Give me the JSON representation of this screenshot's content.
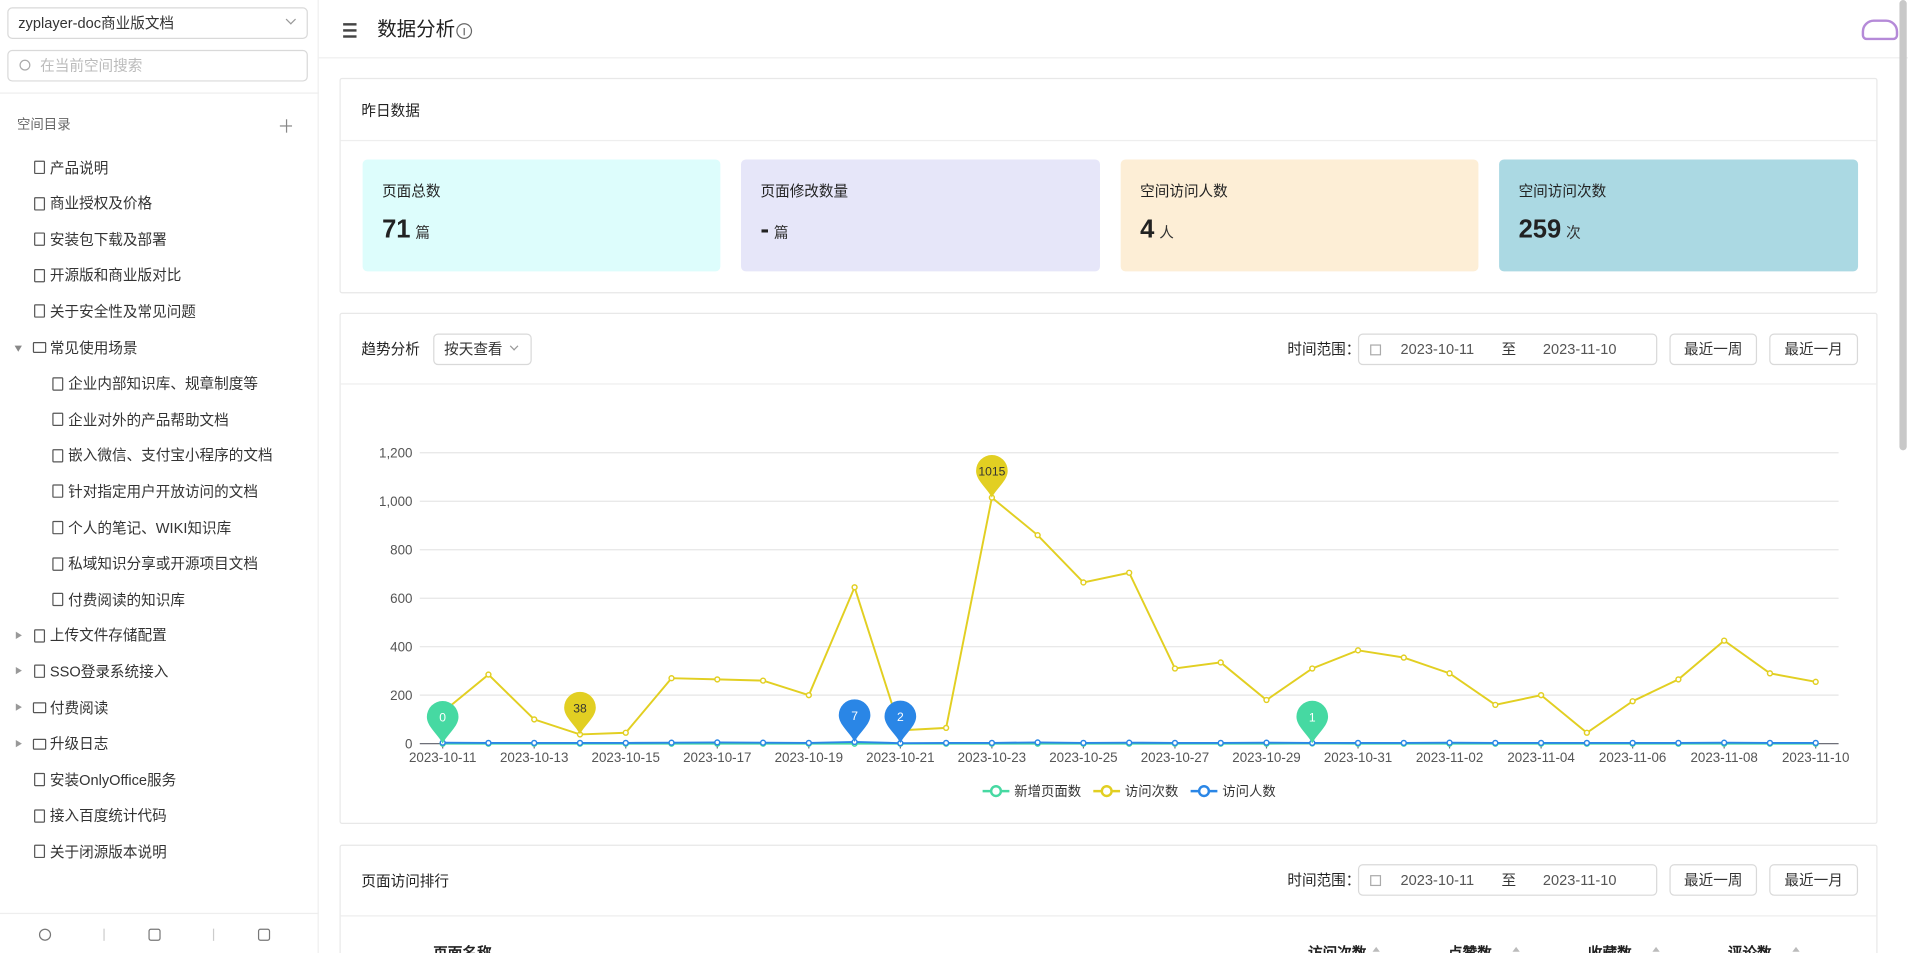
{
  "sidebar": {
    "space": "zyplayer-doc商业版文档",
    "search_placeholder": "在当前空间搜索",
    "tree_title": "空间目录",
    "tree": [
      {
        "label": "产品说明"
      },
      {
        "label": "商业授权及价格"
      },
      {
        "label": "安装包下载及部署"
      },
      {
        "label": "开源版和商业版对比"
      },
      {
        "label": "关于安全性及常见问题"
      },
      {
        "label": "常见使用场景",
        "folder": true,
        "expanded": true,
        "children": [
          {
            "label": "企业内部知识库、规章制度等"
          },
          {
            "label": "企业对外的产品帮助文档"
          },
          {
            "label": "嵌入微信、支付宝小程序的文档"
          },
          {
            "label": "针对指定用户开放访问的文档"
          },
          {
            "label": "个人的笔记、WIKI知识库"
          },
          {
            "label": "私域知识分享或开源项目文档"
          },
          {
            "label": "付费阅读的知识库"
          }
        ]
      },
      {
        "label": "上传文件存储配置",
        "expanded": false
      },
      {
        "label": "SSO登录系统接入",
        "expanded": false
      },
      {
        "label": "付费阅读",
        "folder": true,
        "expanded": false
      },
      {
        "label": "升级日志",
        "folder": true,
        "expanded": false
      },
      {
        "label": "安装OnlyOffice服务"
      },
      {
        "label": "接入百度统计代码"
      },
      {
        "label": "关于闭源版本说明"
      }
    ]
  },
  "header": {
    "title": "数据分析"
  },
  "yesterday": {
    "title": "昨日数据",
    "cards": [
      {
        "label": "页面总数",
        "value": "71",
        "unit": "篇",
        "color": "#ddfdfc"
      },
      {
        "label": "页面修改数量",
        "value": "-",
        "unit": "篇",
        "color": "#e6e6f9"
      },
      {
        "label": "空间访问人数",
        "value": "4",
        "unit": "人",
        "color": "#fdeed6"
      },
      {
        "label": "空间访问次数",
        "value": "259",
        "unit": "次",
        "color": "#abd9e3"
      }
    ]
  },
  "trend": {
    "title": "趋势分析",
    "view": "按天查看",
    "range_label": "时间范围：",
    "range_start": "2023-10-11",
    "range_sep": "至",
    "range_end": "2023-11-10",
    "buttons": [
      "最近一周",
      "最近一月"
    ]
  },
  "chart_data": {
    "type": "line",
    "categories": [
      "2023-10-11",
      null,
      "2023-10-13",
      null,
      "2023-10-15",
      null,
      "2023-10-17",
      null,
      "2023-10-19",
      null,
      "2023-10-21",
      null,
      "2023-10-23",
      null,
      "2023-10-25",
      null,
      "2023-10-27",
      null,
      "2023-10-29",
      null,
      "2023-10-31",
      null,
      "2023-11-02",
      null,
      "2023-11-04",
      null,
      "2023-11-06",
      null,
      "2023-11-08",
      null,
      "2023-11-10"
    ],
    "series": [
      {
        "name": "新增页面数",
        "color": "#46d9a2",
        "values": [
          0,
          0,
          0,
          0,
          0,
          0,
          0,
          0,
          0,
          0,
          0,
          0,
          0,
          0,
          0,
          0,
          0,
          0,
          0,
          1,
          0,
          0,
          0,
          0,
          0,
          0,
          0,
          0,
          0,
          0,
          0
        ]
      },
      {
        "name": "访问次数",
        "color": "#e2cf22",
        "values": [
          130,
          285,
          100,
          38,
          45,
          270,
          265,
          260,
          200,
          645,
          55,
          65,
          1015,
          860,
          665,
          705,
          310,
          335,
          180,
          310,
          385,
          355,
          290,
          160,
          200,
          45,
          175,
          265,
          425,
          290,
          255
        ]
      },
      {
        "name": "访问人数",
        "color": "#2a86e6",
        "values": [
          4,
          3,
          3,
          3,
          3,
          4,
          5,
          4,
          3,
          7,
          2,
          3,
          3,
          5,
          3,
          4,
          3,
          3,
          4,
          3,
          3,
          3,
          4,
          3,
          3,
          3,
          3,
          3,
          4,
          3,
          3
        ]
      }
    ],
    "ylim": [
      0,
      1200
    ],
    "yticks": [
      0,
      200,
      400,
      600,
      800,
      {
        "value": 1000,
        "label": "1,000"
      },
      {
        "value": 1200,
        "label": "1,200"
      }
    ],
    "grid": true,
    "legend": "bottom",
    "mark_points": [
      "max",
      "min"
    ]
  },
  "ranking": {
    "title": "页面访问排行",
    "range_label": "时间范围：",
    "range_start": "2023-10-11",
    "range_sep": "至",
    "range_end": "2023-11-10",
    "buttons": [
      "最近一周",
      "最近一月"
    ],
    "columns": [
      "页面名称",
      "访问次数",
      "点赞数",
      "收藏数",
      "评论数"
    ]
  }
}
